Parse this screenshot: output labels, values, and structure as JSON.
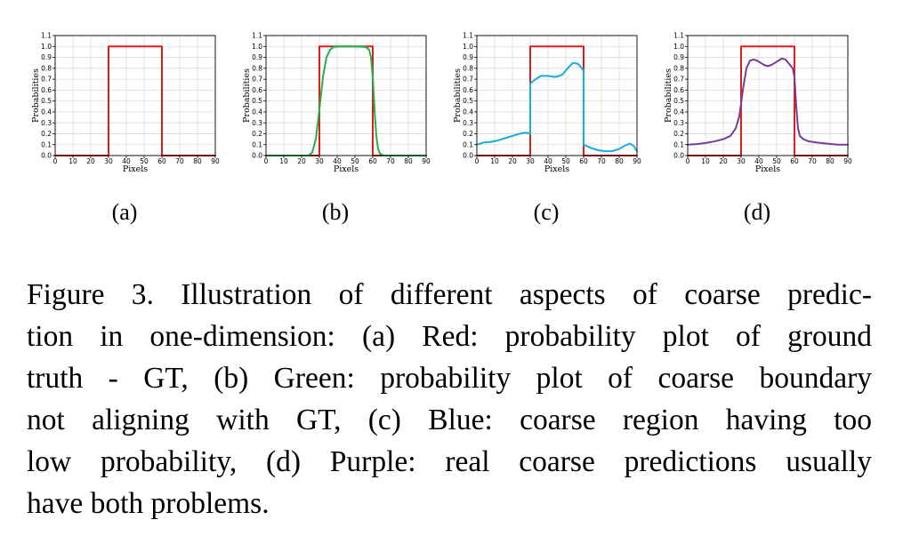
{
  "chart_data": [
    {
      "panel": "(a)",
      "type": "line",
      "xlabel": "Pixels",
      "ylabel": "Probabilities",
      "xlim": [
        0,
        90
      ],
      "ylim": [
        0,
        1.1
      ],
      "xticks": [
        0,
        10,
        20,
        30,
        40,
        50,
        60,
        70,
        80,
        90
      ],
      "yticks": [
        0.0,
        0.1,
        0.2,
        0.3,
        0.4,
        0.5,
        0.6,
        0.7,
        0.8,
        0.9,
        1.0,
        1.1
      ],
      "grid": true,
      "series": [
        {
          "color": "#dd1c1c",
          "x": [
            0,
            30,
            30,
            60,
            60,
            90
          ],
          "y": [
            0,
            0,
            1.0,
            1.0,
            0,
            0
          ]
        }
      ]
    },
    {
      "panel": "(b)",
      "type": "line",
      "xlabel": "Pixels",
      "ylabel": "Probabilities",
      "xlim": [
        0,
        90
      ],
      "ylim": [
        0,
        1.1
      ],
      "xticks": [
        0,
        10,
        20,
        30,
        40,
        50,
        60,
        70,
        80,
        90
      ],
      "yticks": [
        0.0,
        0.1,
        0.2,
        0.3,
        0.4,
        0.5,
        0.6,
        0.7,
        0.8,
        0.9,
        1.0,
        1.1
      ],
      "grid": true,
      "series": [
        {
          "color": "#dd1c1c",
          "x": [
            0,
            30,
            30,
            60,
            60,
            90
          ],
          "y": [
            0,
            0,
            1.0,
            1.0,
            0,
            0
          ]
        },
        {
          "color": "#22b04a",
          "x": [
            0,
            24,
            26,
            28,
            30,
            32,
            34,
            36,
            38,
            42,
            50,
            56,
            58,
            59,
            60,
            61,
            62,
            63,
            64,
            66,
            90
          ],
          "y": [
            0,
            0,
            0.03,
            0.15,
            0.42,
            0.72,
            0.9,
            0.97,
            0.995,
            1.0,
            1.0,
            0.995,
            0.97,
            0.9,
            0.72,
            0.42,
            0.18,
            0.06,
            0.02,
            0,
            0
          ]
        }
      ]
    },
    {
      "panel": "(c)",
      "type": "line",
      "xlabel": "Pixels",
      "ylabel": "Probabilities",
      "xlim": [
        0,
        90
      ],
      "ylim": [
        0,
        1.1
      ],
      "xticks": [
        0,
        10,
        20,
        30,
        40,
        50,
        60,
        70,
        80,
        90
      ],
      "yticks": [
        0.0,
        0.1,
        0.2,
        0.3,
        0.4,
        0.5,
        0.6,
        0.7,
        0.8,
        0.9,
        1.0,
        1.1
      ],
      "grid": true,
      "series": [
        {
          "color": "#dd1c1c",
          "x": [
            0,
            30,
            30,
            60,
            60,
            90
          ],
          "y": [
            0,
            0,
            1.0,
            1.0,
            0,
            0
          ]
        },
        {
          "color": "#1aa9e0",
          "x": [
            0,
            4,
            8,
            12,
            16,
            20,
            24,
            27,
            29,
            30,
            30,
            33,
            36,
            40,
            44,
            48,
            51,
            54,
            57,
            59,
            60,
            60,
            64,
            68,
            72,
            76,
            80,
            83,
            86,
            88,
            90
          ],
          "y": [
            0.1,
            0.12,
            0.125,
            0.14,
            0.16,
            0.18,
            0.2,
            0.21,
            0.205,
            0.2,
            0.66,
            0.7,
            0.73,
            0.73,
            0.72,
            0.74,
            0.8,
            0.85,
            0.84,
            0.8,
            0.78,
            0.1,
            0.07,
            0.05,
            0.04,
            0.04,
            0.06,
            0.09,
            0.11,
            0.09,
            0.04
          ]
        }
      ]
    },
    {
      "panel": "(d)",
      "type": "line",
      "xlabel": "Pixels",
      "ylabel": "Probabilities",
      "xlim": [
        0,
        90
      ],
      "ylim": [
        0,
        1.1
      ],
      "xticks": [
        0,
        10,
        20,
        30,
        40,
        50,
        60,
        70,
        80,
        90
      ],
      "yticks": [
        0.0,
        0.1,
        0.2,
        0.3,
        0.4,
        0.5,
        0.6,
        0.7,
        0.8,
        0.9,
        1.0,
        1.1
      ],
      "grid": true,
      "series": [
        {
          "color": "#dd1c1c",
          "x": [
            0,
            30,
            30,
            60,
            60,
            90
          ],
          "y": [
            0,
            0,
            1.0,
            1.0,
            0,
            0
          ]
        },
        {
          "color": "#7a3a9a",
          "x": [
            0,
            5,
            10,
            15,
            20,
            24,
            27,
            29,
            31,
            33,
            35,
            37,
            39,
            41,
            43,
            45,
            47,
            49,
            51,
            53,
            55,
            57,
            59,
            60,
            61,
            62,
            63,
            65,
            68,
            72,
            78,
            84,
            90
          ],
          "y": [
            0.1,
            0.105,
            0.115,
            0.13,
            0.15,
            0.18,
            0.25,
            0.36,
            0.6,
            0.8,
            0.87,
            0.88,
            0.87,
            0.85,
            0.83,
            0.82,
            0.83,
            0.85,
            0.87,
            0.89,
            0.88,
            0.84,
            0.8,
            0.72,
            0.45,
            0.25,
            0.18,
            0.15,
            0.13,
            0.12,
            0.11,
            0.1,
            0.1
          ]
        }
      ]
    }
  ],
  "sublabels": [
    "(a)",
    "(b)",
    "(c)",
    "(d)"
  ],
  "caption_lines": [
    "Figure 3.  Illustration of different aspects of coarse predic-",
    "tion in one-dimension: (a) Red: probability plot of ground",
    "truth - GT, (b) Green:  probability plot of coarse boundary",
    "not aligning with GT, (c) Blue:  coarse region having too",
    "low probability, (d) Purple: real coarse predictions usually",
    "have both problems."
  ]
}
